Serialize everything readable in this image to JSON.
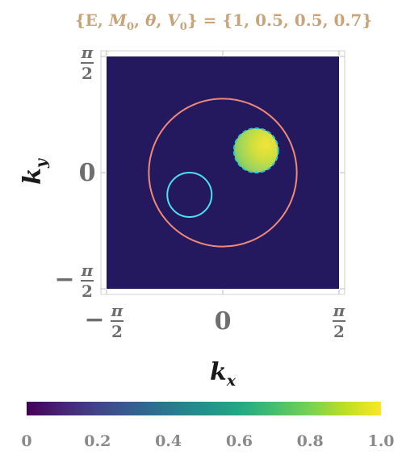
{
  "chart_data": {
    "type": "heatmap",
    "title_parts": [
      "{E, ",
      "M",
      "0",
      ", ",
      "θ",
      ", ",
      "V",
      "0",
      "} = {1, 0.5, 0.5, 0.7}"
    ],
    "xlabel": {
      "main": "k",
      "sub": "x"
    },
    "ylabel": {
      "main": "k",
      "sub": "y"
    },
    "xlim": [
      -1.5708,
      1.5708
    ],
    "ylim": [
      -1.5708,
      1.5708
    ],
    "x_ticks": [
      {
        "value": -1.5708,
        "sign": "−",
        "numerator": "π",
        "denominator": "2"
      },
      {
        "value": 0,
        "label": "0"
      },
      {
        "value": 1.5708,
        "sign": "",
        "numerator": "π",
        "denominator": "2"
      }
    ],
    "y_ticks": [
      {
        "value": 1.5708,
        "sign": "",
        "numerator": "π",
        "denominator": "2"
      },
      {
        "value": 0,
        "label": "0"
      },
      {
        "value": -1.5708,
        "sign": "−",
        "numerator": "π",
        "denominator": "2"
      }
    ],
    "background_value": 0,
    "filled_region": {
      "center": [
        0.45,
        0.3
      ],
      "radius": 0.3,
      "value_min": 0.75,
      "value_max": 1.0,
      "outline_color": "#2ec4d8",
      "outline_style": "dashed"
    },
    "contours": [
      {
        "shape": "circle",
        "center": [
          0,
          0
        ],
        "radius": 1.0,
        "color": "#f08a78"
      },
      {
        "shape": "circle",
        "center": [
          -0.45,
          -0.3
        ],
        "radius": 0.3,
        "color": "#4fe0f0"
      }
    ],
    "colorbar": {
      "colormap": "viridis",
      "range": [
        0,
        1
      ],
      "tick_labels": [
        "0",
        "0.2",
        "0.4",
        "0.6",
        "0.8",
        "1.0"
      ]
    },
    "colors": {
      "background": "#24195e",
      "frame": "#d8d8d8",
      "title": "#c8a47a"
    }
  }
}
